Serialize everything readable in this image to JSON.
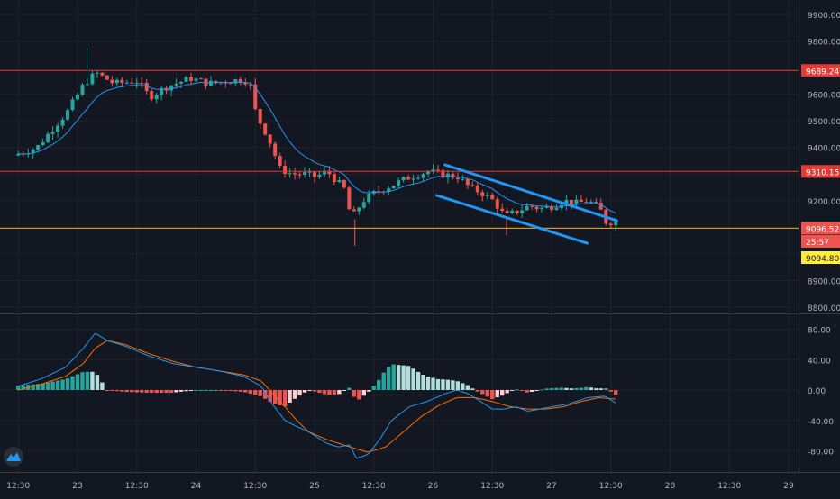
{
  "chart_data": [
    {
      "type": "candlestick",
      "title": "",
      "ylim": [
        8750,
        9950
      ],
      "y_ticks": [
        "9900.00",
        "9800.00",
        "9700.00",
        "9600.00",
        "9500.00",
        "9400.00",
        "9300.00",
        "9200.00",
        "9100.00",
        "9000.00",
        "8900.00",
        "8800.00"
      ],
      "y_tick_values": [
        9900,
        9800,
        9700,
        9600,
        9500,
        9400,
        9300,
        9200,
        9100,
        9000,
        8900,
        8800
      ],
      "x_ticks": [
        "12:30",
        "23",
        "12:30",
        "24",
        "12:30",
        "25",
        "12:30",
        "26",
        "12:30",
        "27",
        "12:30",
        "28",
        "12:30",
        "29"
      ],
      "horizontal_lines": [
        {
          "value": 9689.24,
          "label": "9689.24",
          "color": "#e53935"
        },
        {
          "value": 9310.15,
          "label": "9310.15",
          "color": "#e53935"
        },
        {
          "value": 9096.52,
          "label": "9096.52",
          "color": "#f9a825"
        }
      ],
      "price_labels": [
        {
          "value": 9096.52,
          "text": "9096.52",
          "bg": "#ef5350",
          "fg": "#ffffff"
        },
        {
          "value": 9063,
          "text": "25:57",
          "bg": "#ef5350",
          "fg": "#ffffff"
        },
        {
          "value": 9094.8,
          "text": "9094.80",
          "bg": "#ffeb3b",
          "fg": "#131722"
        }
      ],
      "trend_channel": {
        "upper": {
          "from": [
            26.1,
            9335
          ],
          "to": [
            27.55,
            9125
          ]
        },
        "lower": {
          "from": [
            26.03,
            9220
          ],
          "to": [
            27.3,
            9040
          ]
        },
        "color": "#2196f3"
      },
      "ema_color": "#2196f3",
      "up_color": "#26a69a",
      "down_color": "#ef5350",
      "ohlc_key_points": [
        [
          22.5,
          9370
        ],
        [
          22.7,
          9400
        ],
        [
          22.85,
          9480
        ],
        [
          22.95,
          9530
        ],
        [
          23.1,
          9640
        ],
        [
          23.2,
          9680
        ],
        [
          23.35,
          9640
        ],
        [
          23.55,
          9650
        ],
        [
          23.65,
          9590
        ],
        [
          23.8,
          9630
        ],
        [
          24.0,
          9660
        ],
        [
          24.15,
          9640
        ],
        [
          24.3,
          9650
        ],
        [
          24.45,
          9655
        ],
        [
          24.5,
          9630
        ],
        [
          24.55,
          9520
        ],
        [
          24.65,
          9440
        ],
        [
          24.75,
          9320
        ],
        [
          24.85,
          9300
        ],
        [
          24.95,
          9300
        ],
        [
          25.05,
          9290
        ],
        [
          25.15,
          9310
        ],
        [
          25.3,
          9240
        ],
        [
          25.35,
          9130
        ],
        [
          25.45,
          9200
        ],
        [
          25.55,
          9230
        ],
        [
          25.7,
          9260
        ],
        [
          25.85,
          9290
        ],
        [
          26.0,
          9310
        ],
        [
          26.1,
          9300
        ],
        [
          26.25,
          9290
        ],
        [
          26.35,
          9250
        ],
        [
          26.45,
          9230
        ],
        [
          26.55,
          9200
        ],
        [
          26.65,
          9140
        ],
        [
          26.75,
          9160
        ],
        [
          26.85,
          9180
        ],
        [
          26.95,
          9170
        ],
        [
          27.05,
          9180
        ],
        [
          27.15,
          9200
        ],
        [
          27.25,
          9190
        ],
        [
          27.35,
          9200
        ],
        [
          27.45,
          9170
        ],
        [
          27.5,
          9120
        ]
      ]
    },
    {
      "type": "macd",
      "ylim": [
        -95,
        95
      ],
      "y_ticks": [
        "80.00",
        "40.00",
        "0.00",
        "-40.00",
        "-80.00"
      ],
      "y_tick_values": [
        80,
        40,
        0,
        -40,
        -80
      ],
      "macd_color": "#2196f3",
      "signal_color": "#ff6d00",
      "macd_key_points": [
        [
          22.5,
          5
        ],
        [
          22.7,
          15
        ],
        [
          22.9,
          30
        ],
        [
          23.05,
          55
        ],
        [
          23.15,
          75
        ],
        [
          23.25,
          65
        ],
        [
          23.4,
          58
        ],
        [
          23.6,
          45
        ],
        [
          23.8,
          35
        ],
        [
          24.0,
          30
        ],
        [
          24.2,
          25
        ],
        [
          24.4,
          18
        ],
        [
          24.55,
          5
        ],
        [
          24.65,
          -20
        ],
        [
          24.75,
          -40
        ],
        [
          24.85,
          -48
        ],
        [
          24.95,
          -55
        ],
        [
          25.1,
          -70
        ],
        [
          25.2,
          -75
        ],
        [
          25.3,
          -72
        ],
        [
          25.35,
          -90
        ],
        [
          25.45,
          -85
        ],
        [
          25.55,
          -65
        ],
        [
          25.65,
          -40
        ],
        [
          25.8,
          -22
        ],
        [
          25.95,
          -15
        ],
        [
          26.1,
          -5
        ],
        [
          26.2,
          0
        ],
        [
          26.3,
          -5
        ],
        [
          26.4,
          -15
        ],
        [
          26.5,
          -25
        ],
        [
          26.6,
          -25
        ],
        [
          26.7,
          -22
        ],
        [
          26.8,
          -28
        ],
        [
          26.9,
          -25
        ],
        [
          27.0,
          -22
        ],
        [
          27.15,
          -18
        ],
        [
          27.3,
          -10
        ],
        [
          27.45,
          -8
        ],
        [
          27.55,
          -18
        ]
      ],
      "signal_key_points": [
        [
          22.5,
          0
        ],
        [
          22.7,
          8
        ],
        [
          22.9,
          18
        ],
        [
          23.05,
          35
        ],
        [
          23.15,
          55
        ],
        [
          23.25,
          65
        ],
        [
          23.4,
          60
        ],
        [
          23.6,
          48
        ],
        [
          23.8,
          38
        ],
        [
          24.0,
          30
        ],
        [
          24.2,
          25
        ],
        [
          24.4,
          20
        ],
        [
          24.55,
          12
        ],
        [
          24.65,
          -5
        ],
        [
          24.75,
          -22
        ],
        [
          24.85,
          -40
        ],
        [
          24.95,
          -55
        ],
        [
          25.1,
          -65
        ],
        [
          25.3,
          -75
        ],
        [
          25.45,
          -82
        ],
        [
          25.6,
          -75
        ],
        [
          25.75,
          -55
        ],
        [
          25.9,
          -35
        ],
        [
          26.05,
          -20
        ],
        [
          26.2,
          -10
        ],
        [
          26.35,
          -10
        ],
        [
          26.5,
          -15
        ],
        [
          26.65,
          -22
        ],
        [
          26.8,
          -25
        ],
        [
          26.95,
          -25
        ],
        [
          27.1,
          -22
        ],
        [
          27.25,
          -15
        ],
        [
          27.4,
          -10
        ],
        [
          27.55,
          -12
        ]
      ],
      "histogram_colors": [
        "#26a69a",
        "#b2dfdb",
        "#ef5350",
        "#ffcdd2"
      ]
    }
  ]
}
